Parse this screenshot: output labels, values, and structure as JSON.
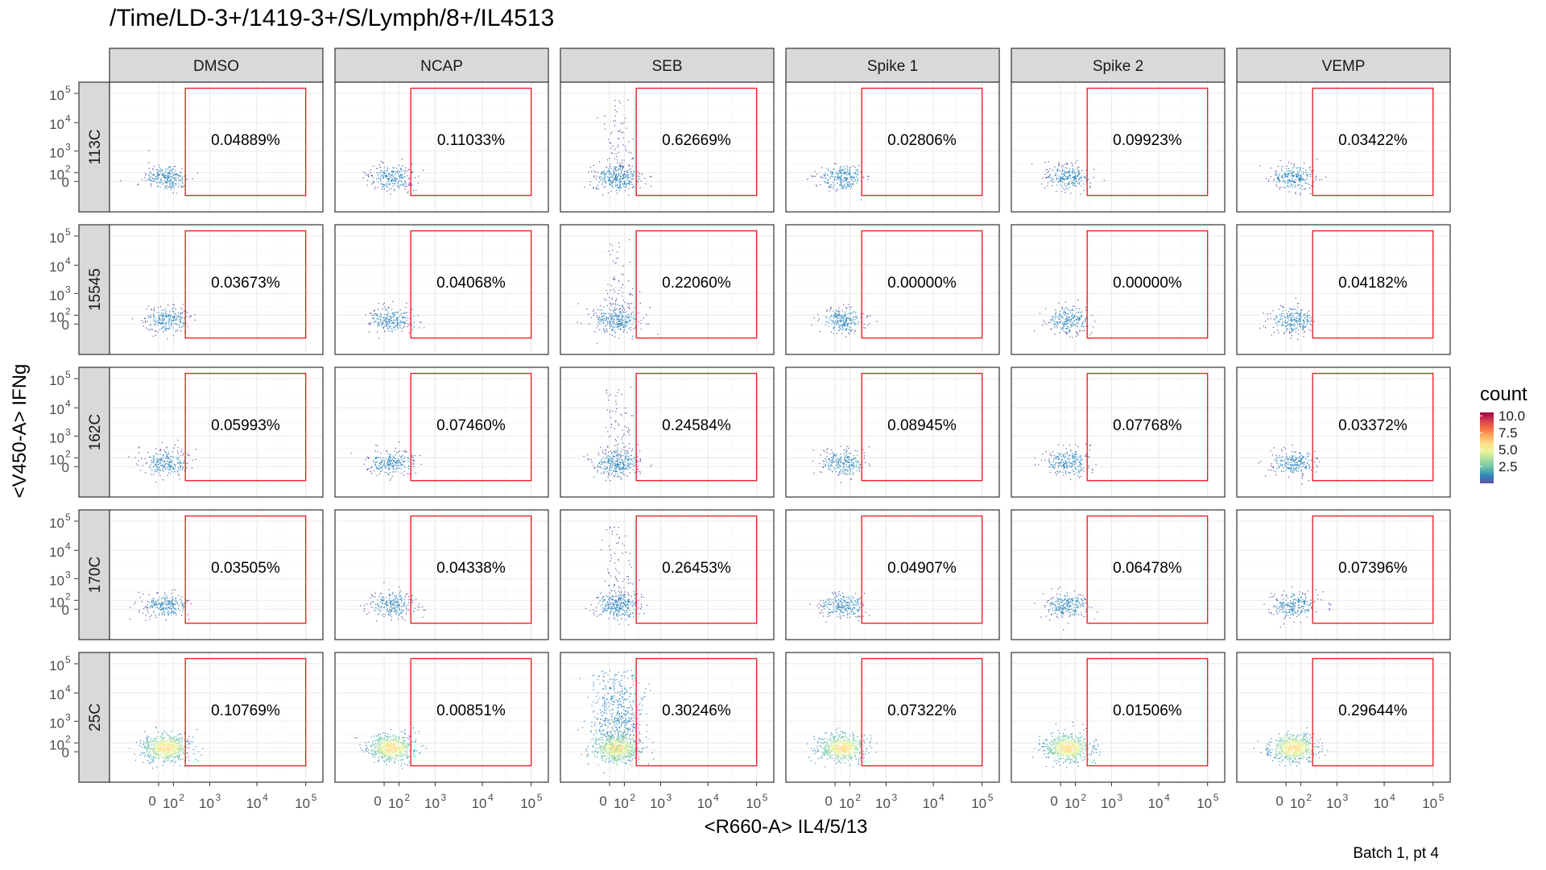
{
  "chart_data": {
    "type": "scatter",
    "subtype": "faceted flow cytometry density scatter with gates",
    "title": "/Time/LD-3+/1419-3+/S/Lymph/8+/IL4513",
    "xlabel": "<R660-A> IL4/5/13",
    "ylabel": "<V450-A> IFNg",
    "caption": "Batch 1, pt 4",
    "x_scale": "biexponential",
    "y_scale": "biexponential",
    "x_ticks": [
      "0",
      "10^2",
      "10^3",
      "10^4",
      "10^5"
    ],
    "y_ticks": [
      "0",
      "10^2",
      "10^3",
      "10^4",
      "10^5"
    ],
    "grid": true,
    "columns": [
      "DMSO",
      "NCAP",
      "SEB",
      "Spike 1",
      "Spike 2",
      "VEMP"
    ],
    "rows": [
      "113C",
      "15545",
      "162C",
      "170C",
      "25C"
    ],
    "gate": {
      "x_min": 250,
      "x_max": 100000,
      "y_min": -200,
      "y_max": 150000,
      "color": "#e8232a"
    },
    "gate_percentages": [
      [
        "0.04889%",
        "0.11033%",
        "0.62669%",
        "0.02806%",
        "0.09923%",
        "0.03422%"
      ],
      [
        "0.03673%",
        "0.04068%",
        "0.22060%",
        "0.00000%",
        "0.00000%",
        "0.04182%"
      ],
      [
        "0.05993%",
        "0.07460%",
        "0.24584%",
        "0.08945%",
        "0.07768%",
        "0.03372%"
      ],
      [
        "0.03505%",
        "0.04338%",
        "0.26453%",
        "0.04907%",
        "0.06478%",
        "0.07396%"
      ],
      [
        "0.10769%",
        "0.00851%",
        "0.30246%",
        "0.07322%",
        "0.01506%",
        "0.29644%"
      ]
    ],
    "legend": {
      "title": "count",
      "position": "right",
      "labels": [
        "10.0",
        "7.5",
        "5.0",
        "2.5"
      ],
      "values": [
        10.0,
        7.5,
        5.0,
        2.5
      ],
      "range": [
        0,
        10.5
      ],
      "colors": [
        "#5e4fa2",
        "#3288bd",
        "#66c2a5",
        "#abdda4",
        "#e6f598",
        "#fee08b",
        "#fdae61",
        "#f46d43",
        "#d53e4f",
        "#9e0142"
      ]
    }
  },
  "colors": {
    "strip_fill": "#d9d9d9",
    "panel_border": "#333333",
    "grid_major": "#ebebeb",
    "grid_minor": "#f5f5f5",
    "point": "#3b3f8f",
    "tick_text": "#4d4d4d"
  }
}
